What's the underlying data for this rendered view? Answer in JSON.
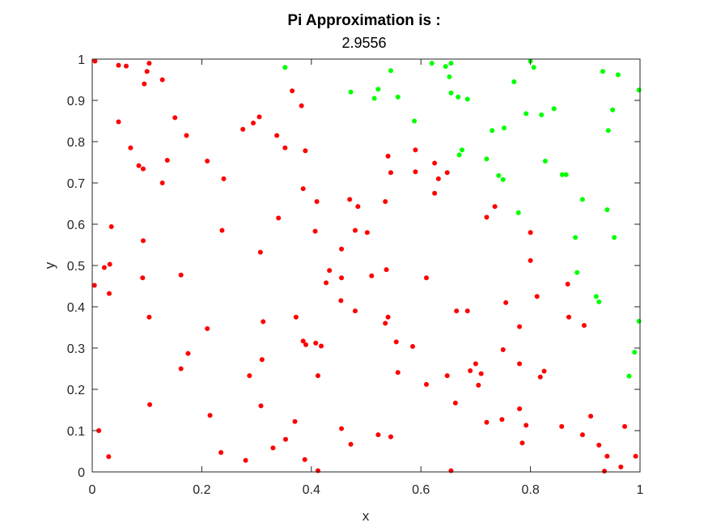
{
  "chart_data": {
    "type": "scatter",
    "title": "Pi Approximation is :",
    "subtitle": "2.9556",
    "xlabel": "x",
    "ylabel": "y",
    "xlim": [
      0,
      1
    ],
    "ylim": [
      0,
      1
    ],
    "xticks": [
      "0",
      "0.2",
      "0.4",
      "0.6",
      "0.8",
      "1"
    ],
    "yticks": [
      "0",
      "0.1",
      "0.2",
      "0.3",
      "0.4",
      "0.5",
      "0.6",
      "0.7",
      "0.8",
      "0.9",
      "1"
    ],
    "grid": false,
    "legend": "none",
    "series": [
      {
        "color": "#ff0000",
        "points": [
          [
            0.005,
            0.995
          ],
          [
            0.048,
            0.985
          ],
          [
            0.062,
            0.983
          ],
          [
            0.1,
            0.97
          ],
          [
            0.104,
            0.99
          ],
          [
            0.095,
            0.94
          ],
          [
            0.128,
            0.95
          ],
          [
            0.048,
            0.848
          ],
          [
            0.07,
            0.785
          ],
          [
            0.085,
            0.742
          ],
          [
            0.093,
            0.734
          ],
          [
            0.137,
            0.755
          ],
          [
            0.128,
            0.7
          ],
          [
            0.151,
            0.858
          ],
          [
            0.172,
            0.815
          ],
          [
            0.21,
            0.753
          ],
          [
            0.24,
            0.71
          ],
          [
            0.275,
            0.83
          ],
          [
            0.294,
            0.845
          ],
          [
            0.305,
            0.86
          ],
          [
            0.337,
            0.815
          ],
          [
            0.352,
            0.785
          ],
          [
            0.365,
            0.923
          ],
          [
            0.382,
            0.887
          ],
          [
            0.389,
            0.778
          ],
          [
            0.385,
            0.686
          ],
          [
            0.34,
            0.615
          ],
          [
            0.41,
            0.655
          ],
          [
            0.407,
            0.583
          ],
          [
            0.47,
            0.66
          ],
          [
            0.485,
            0.643
          ],
          [
            0.48,
            0.585
          ],
          [
            0.502,
            0.58
          ],
          [
            0.535,
            0.655
          ],
          [
            0.54,
            0.765
          ],
          [
            0.545,
            0.725
          ],
          [
            0.59,
            0.78
          ],
          [
            0.59,
            0.727
          ],
          [
            0.625,
            0.748
          ],
          [
            0.625,
            0.675
          ],
          [
            0.632,
            0.71
          ],
          [
            0.648,
            0.725
          ],
          [
            0.72,
            0.617
          ],
          [
            0.735,
            0.643
          ],
          [
            0.8,
            0.58
          ],
          [
            0.035,
            0.594
          ],
          [
            0.032,
            0.503
          ],
          [
            0.022,
            0.495
          ],
          [
            0.004,
            0.452
          ],
          [
            0.031,
            0.432
          ],
          [
            0.093,
            0.56
          ],
          [
            0.092,
            0.47
          ],
          [
            0.104,
            0.375
          ],
          [
            0.162,
            0.477
          ],
          [
            0.237,
            0.585
          ],
          [
            0.307,
            0.532
          ],
          [
            0.312,
            0.364
          ],
          [
            0.372,
            0.375
          ],
          [
            0.21,
            0.347
          ],
          [
            0.175,
            0.287
          ],
          [
            0.162,
            0.25
          ],
          [
            0.31,
            0.272
          ],
          [
            0.385,
            0.317
          ],
          [
            0.39,
            0.308
          ],
          [
            0.408,
            0.312
          ],
          [
            0.418,
            0.305
          ],
          [
            0.433,
            0.488
          ],
          [
            0.427,
            0.458
          ],
          [
            0.455,
            0.54
          ],
          [
            0.455,
            0.47
          ],
          [
            0.454,
            0.415
          ],
          [
            0.48,
            0.39
          ],
          [
            0.51,
            0.475
          ],
          [
            0.537,
            0.49
          ],
          [
            0.54,
            0.375
          ],
          [
            0.535,
            0.36
          ],
          [
            0.555,
            0.315
          ],
          [
            0.585,
            0.304
          ],
          [
            0.61,
            0.47
          ],
          [
            0.665,
            0.39
          ],
          [
            0.685,
            0.39
          ],
          [
            0.755,
            0.41
          ],
          [
            0.8,
            0.512
          ],
          [
            0.812,
            0.425
          ],
          [
            0.868,
            0.455
          ],
          [
            0.87,
            0.375
          ],
          [
            0.898,
            0.355
          ],
          [
            0.78,
            0.352
          ],
          [
            0.75,
            0.296
          ],
          [
            0.78,
            0.262
          ],
          [
            0.69,
            0.245
          ],
          [
            0.7,
            0.262
          ],
          [
            0.71,
            0.238
          ],
          [
            0.705,
            0.21
          ],
          [
            0.648,
            0.233
          ],
          [
            0.61,
            0.212
          ],
          [
            0.558,
            0.241
          ],
          [
            0.412,
            0.233
          ],
          [
            0.287,
            0.233
          ],
          [
            0.825,
            0.244
          ],
          [
            0.818,
            0.23
          ],
          [
            0.105,
            0.163
          ],
          [
            0.012,
            0.1
          ],
          [
            0.03,
            0.037
          ],
          [
            0.215,
            0.137
          ],
          [
            0.235,
            0.047
          ],
          [
            0.28,
            0.028
          ],
          [
            0.308,
            0.16
          ],
          [
            0.33,
            0.058
          ],
          [
            0.353,
            0.079
          ],
          [
            0.37,
            0.122
          ],
          [
            0.388,
            0.03
          ],
          [
            0.412,
            0.003
          ],
          [
            0.455,
            0.105
          ],
          [
            0.472,
            0.067
          ],
          [
            0.522,
            0.09
          ],
          [
            0.545,
            0.085
          ],
          [
            0.663,
            0.167
          ],
          [
            0.655,
            0.003
          ],
          [
            0.72,
            0.12
          ],
          [
            0.748,
            0.127
          ],
          [
            0.78,
            0.153
          ],
          [
            0.792,
            0.113
          ],
          [
            0.785,
            0.07
          ],
          [
            0.857,
            0.11
          ],
          [
            0.895,
            0.09
          ],
          [
            0.91,
            0.135
          ],
          [
            0.925,
            0.065
          ],
          [
            0.94,
            0.038
          ],
          [
            0.935,
            0.002
          ],
          [
            0.965,
            0.012
          ],
          [
            0.972,
            0.11
          ],
          [
            0.992,
            0.038
          ]
        ]
      },
      {
        "color": "#00ff00",
        "points": [
          [
            0.352,
            0.98
          ],
          [
            0.472,
            0.92
          ],
          [
            0.522,
            0.927
          ],
          [
            0.515,
            0.905
          ],
          [
            0.545,
            0.972
          ],
          [
            0.558,
            0.908
          ],
          [
            0.62,
            0.99
          ],
          [
            0.645,
            0.982
          ],
          [
            0.655,
            0.99
          ],
          [
            0.652,
            0.957
          ],
          [
            0.655,
            0.918
          ],
          [
            0.668,
            0.908
          ],
          [
            0.685,
            0.903
          ],
          [
            0.588,
            0.85
          ],
          [
            0.67,
            0.768
          ],
          [
            0.675,
            0.78
          ],
          [
            0.73,
            0.827
          ],
          [
            0.752,
            0.833
          ],
          [
            0.77,
            0.945
          ],
          [
            0.792,
            0.868
          ],
          [
            0.8,
            0.995
          ],
          [
            0.806,
            0.98
          ],
          [
            0.82,
            0.865
          ],
          [
            0.843,
            0.88
          ],
          [
            0.827,
            0.753
          ],
          [
            0.72,
            0.758
          ],
          [
            0.742,
            0.718
          ],
          [
            0.75,
            0.708
          ],
          [
            0.778,
            0.628
          ],
          [
            0.858,
            0.72
          ],
          [
            0.865,
            0.72
          ],
          [
            0.895,
            0.66
          ],
          [
            0.882,
            0.568
          ],
          [
            0.932,
            0.97
          ],
          [
            0.95,
            0.877
          ],
          [
            0.942,
            0.827
          ],
          [
            0.96,
            0.962
          ],
          [
            0.998,
            0.925
          ],
          [
            0.94,
            0.635
          ],
          [
            0.953,
            0.568
          ],
          [
            0.885,
            0.483
          ],
          [
            0.92,
            0.425
          ],
          [
            0.925,
            0.412
          ],
          [
            0.998,
            0.365
          ],
          [
            0.99,
            0.29
          ],
          [
            0.98,
            0.232
          ]
        ]
      }
    ]
  }
}
